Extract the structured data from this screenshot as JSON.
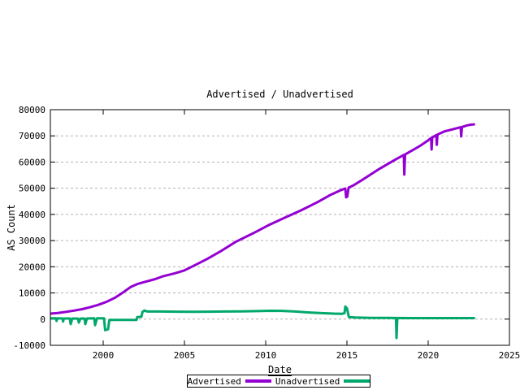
{
  "chart_data": {
    "type": "line",
    "title": "Advertised / Unadvertised",
    "xlabel": "Date",
    "ylabel": "AS Count",
    "xlim": [
      1996.75,
      2025
    ],
    "ylim": [
      -10000,
      80000
    ],
    "grid": "horizontal-dashed",
    "legend_position": "below-chart-boxed",
    "colors": {
      "grid": "#b0b0b0",
      "axis": "#000000",
      "background": "#ffffff"
    },
    "x_ticks": [
      {
        "value": 2000,
        "label": "2000"
      },
      {
        "value": 2005,
        "label": "2005"
      },
      {
        "value": 2010,
        "label": "2010"
      },
      {
        "value": 2015,
        "label": "2015"
      },
      {
        "value": 2020,
        "label": "2020"
      },
      {
        "value": 2025,
        "label": "2025"
      }
    ],
    "y_ticks": [
      {
        "value": -10000,
        "label": "-10000"
      },
      {
        "value": 0,
        "label": "0"
      },
      {
        "value": 10000,
        "label": "10000"
      },
      {
        "value": 20000,
        "label": "20000"
      },
      {
        "value": 30000,
        "label": "30000"
      },
      {
        "value": 40000,
        "label": "40000"
      },
      {
        "value": 50000,
        "label": "50000"
      },
      {
        "value": 60000,
        "label": "60000"
      },
      {
        "value": 70000,
        "label": "70000"
      },
      {
        "value": 80000,
        "label": "80000"
      }
    ],
    "series": [
      {
        "name": "Advertised",
        "color": "#9400d3",
        "width": 3,
        "points": [
          [
            1996.75,
            2100
          ],
          [
            1997.2,
            2350
          ],
          [
            1997.7,
            2750
          ],
          [
            1998.2,
            3250
          ],
          [
            1998.7,
            3800
          ],
          [
            1999.2,
            4550
          ],
          [
            1999.7,
            5450
          ],
          [
            2000.2,
            6600
          ],
          [
            2000.7,
            8100
          ],
          [
            2001.2,
            10100
          ],
          [
            2001.7,
            12300
          ],
          [
            2002.1,
            13400
          ],
          [
            2002.5,
            14100
          ],
          [
            2003.2,
            15300
          ],
          [
            2003.7,
            16400
          ],
          [
            2004.4,
            17500
          ],
          [
            2005.0,
            18600
          ],
          [
            2005.7,
            20800
          ],
          [
            2006.4,
            23000
          ],
          [
            2007.2,
            25800
          ],
          [
            2008.15,
            29500
          ],
          [
            2009.2,
            32700
          ],
          [
            2010.15,
            35800
          ],
          [
            2011.15,
            38700
          ],
          [
            2012.15,
            41500
          ],
          [
            2013.2,
            44700
          ],
          [
            2014.0,
            47500
          ],
          [
            2014.6,
            49200
          ],
          [
            2014.9,
            49900
          ],
          [
            2014.95,
            46500
          ],
          [
            2015.02,
            46800
          ],
          [
            2015.1,
            50200
          ],
          [
            2015.4,
            51100
          ],
          [
            2016.0,
            53400
          ],
          [
            2017.0,
            57400
          ],
          [
            2018.0,
            61000
          ],
          [
            2018.5,
            62700
          ],
          [
            2018.53,
            55200
          ],
          [
            2018.58,
            62900
          ],
          [
            2019.0,
            64400
          ],
          [
            2019.5,
            66200
          ],
          [
            2020.0,
            68300
          ],
          [
            2020.18,
            69200
          ],
          [
            2020.21,
            64800
          ],
          [
            2020.25,
            69400
          ],
          [
            2020.5,
            70300
          ],
          [
            2020.53,
            66600
          ],
          [
            2020.57,
            70500
          ],
          [
            2021.0,
            71700
          ],
          [
            2021.5,
            72500
          ],
          [
            2022.0,
            73300
          ],
          [
            2022.03,
            69800
          ],
          [
            2022.08,
            73400
          ],
          [
            2022.4,
            74000
          ],
          [
            2022.65,
            74300
          ],
          [
            2022.88,
            74400
          ]
        ]
      },
      {
        "name": "Unadvertised",
        "color": "#00a86b",
        "width": 3,
        "points": [
          [
            1996.75,
            300
          ],
          [
            1997.1,
            300
          ],
          [
            1997.13,
            -700
          ],
          [
            1997.18,
            300
          ],
          [
            1997.5,
            250
          ],
          [
            1997.53,
            -900
          ],
          [
            1997.58,
            250
          ],
          [
            1997.95,
            250
          ],
          [
            1998.0,
            -1900
          ],
          [
            1998.1,
            250
          ],
          [
            1998.45,
            200
          ],
          [
            1998.5,
            -1300
          ],
          [
            1998.6,
            200
          ],
          [
            1998.85,
            250
          ],
          [
            1998.9,
            -1900
          ],
          [
            1999.0,
            250
          ],
          [
            1999.45,
            300
          ],
          [
            1999.5,
            -2300
          ],
          [
            1999.62,
            300
          ],
          [
            2000.05,
            300
          ],
          [
            2000.12,
            -4200
          ],
          [
            2000.3,
            -3900
          ],
          [
            2000.38,
            -300
          ],
          [
            2001.0,
            -300
          ],
          [
            2002.05,
            -300
          ],
          [
            2002.1,
            800
          ],
          [
            2002.35,
            900
          ],
          [
            2002.42,
            2800
          ],
          [
            2002.55,
            3300
          ],
          [
            2002.7,
            2900
          ],
          [
            2003.5,
            2900
          ],
          [
            2004.5,
            2850
          ],
          [
            2005.5,
            2800
          ],
          [
            2006.5,
            2850
          ],
          [
            2007.5,
            2900
          ],
          [
            2008.5,
            2950
          ],
          [
            2009.5,
            3050
          ],
          [
            2010.3,
            3200
          ],
          [
            2011.0,
            3150
          ],
          [
            2011.8,
            2900
          ],
          [
            2012.5,
            2600
          ],
          [
            2013.3,
            2350
          ],
          [
            2014.2,
            2100
          ],
          [
            2014.7,
            2050
          ],
          [
            2014.85,
            2300
          ],
          [
            2014.9,
            4800
          ],
          [
            2015.0,
            4100
          ],
          [
            2015.06,
            2500
          ],
          [
            2015.12,
            800
          ],
          [
            2015.5,
            600
          ],
          [
            2016.5,
            500
          ],
          [
            2017.5,
            450
          ],
          [
            2018.02,
            420
          ],
          [
            2018.05,
            -7200
          ],
          [
            2018.1,
            420
          ],
          [
            2019.0,
            400
          ],
          [
            2020.0,
            400
          ],
          [
            2021.0,
            400
          ],
          [
            2022.0,
            400
          ],
          [
            2022.88,
            400
          ]
        ]
      }
    ]
  }
}
